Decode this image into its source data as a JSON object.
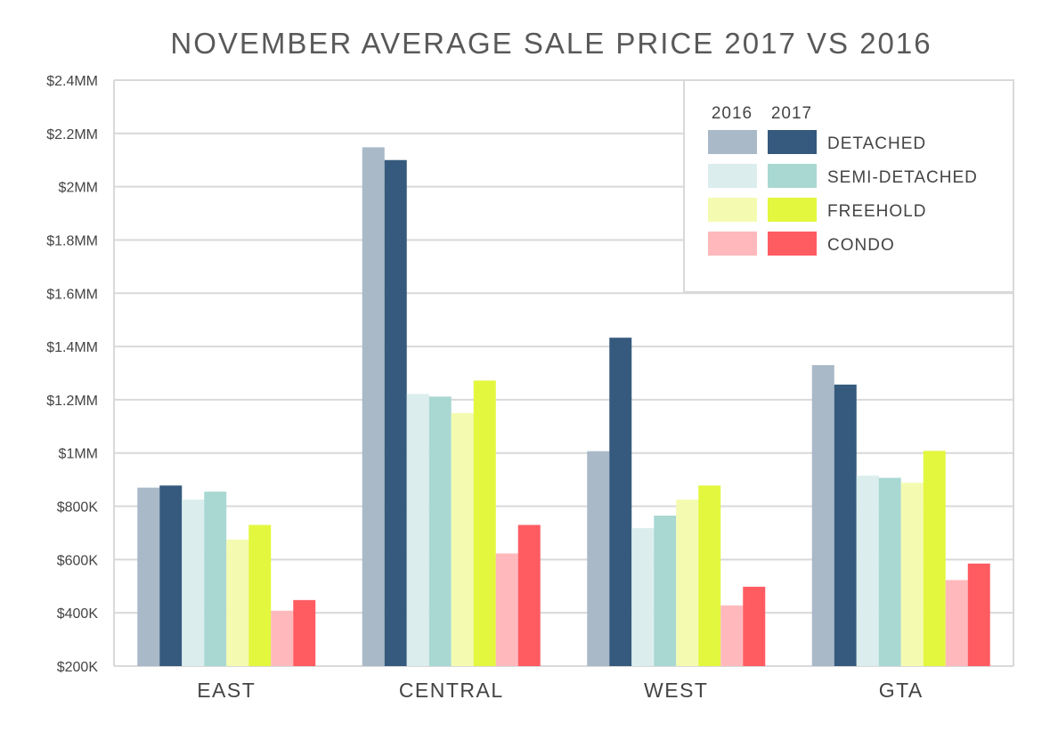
{
  "chart_data": {
    "type": "bar",
    "title": "NOVEMBER AVERAGE SALE PRICE 2017 VS 2016",
    "xlabel": "",
    "ylabel": "",
    "ylim": [
      200000,
      2400000
    ],
    "y_ticks": [
      {
        "value": 200000,
        "label": "$200K"
      },
      {
        "value": 400000,
        "label": "$400K"
      },
      {
        "value": 600000,
        "label": "$600K"
      },
      {
        "value": 800000,
        "label": "$800K"
      },
      {
        "value": 1000000,
        "label": "$1MM"
      },
      {
        "value": 1200000,
        "label": "$1.2MM"
      },
      {
        "value": 1400000,
        "label": "$1.4MM"
      },
      {
        "value": 1600000,
        "label": "$1.6MM"
      },
      {
        "value": 1800000,
        "label": "$1.8MM"
      },
      {
        "value": 2000000,
        "label": "$2MM"
      },
      {
        "value": 2200000,
        "label": "$2.2MM"
      },
      {
        "value": 2400000,
        "label": "$2.4MM"
      }
    ],
    "grid": true,
    "legend_position": "top-right",
    "categories": [
      "EAST",
      "CENTRAL",
      "WEST",
      "GTA"
    ],
    "legend_years": [
      "2016",
      "2017"
    ],
    "legend_rows": [
      {
        "label": "DETACHED",
        "color_2016": "#a9b9c8",
        "color_2017": "#355a7d"
      },
      {
        "label": "SEMI-DETACHED",
        "color_2016": "#dbeeed",
        "color_2017": "#a9d8d3"
      },
      {
        "label": "FREEHOLD",
        "color_2016": "#f4fbb0",
        "color_2017": "#e3f73e"
      },
      {
        "label": "CONDO",
        "color_2016": "#ffb9bc",
        "color_2017": "#ff5c62"
      }
    ],
    "series": [
      {
        "type": "DETACHED",
        "year": "2016",
        "color": "#a9b9c8",
        "values": [
          870000,
          2148000,
          1007000,
          1330000
        ]
      },
      {
        "type": "DETACHED",
        "year": "2017",
        "color": "#355a7d",
        "values": [
          878000,
          2100000,
          1433000,
          1257000
        ]
      },
      {
        "type": "SEMI-DETACHED",
        "year": "2016",
        "color": "#dbeeed",
        "values": [
          825000,
          1222000,
          718000,
          915000
        ]
      },
      {
        "type": "SEMI-DETACHED",
        "year": "2017",
        "color": "#a9d8d3",
        "values": [
          855000,
          1212000,
          765000,
          907000
        ]
      },
      {
        "type": "FREEHOLD",
        "year": "2016",
        "color": "#f4fbb0",
        "values": [
          675000,
          1150000,
          825000,
          888000
        ]
      },
      {
        "type": "FREEHOLD",
        "year": "2017",
        "color": "#e3f73e",
        "values": [
          730000,
          1272000,
          878000,
          1008000
        ]
      },
      {
        "type": "CONDO",
        "year": "2016",
        "color": "#ffb9bc",
        "values": [
          408000,
          623000,
          428000,
          523000
        ]
      },
      {
        "type": "CONDO",
        "year": "2017",
        "color": "#ff5c62",
        "values": [
          448000,
          730000,
          498000,
          585000
        ]
      }
    ]
  }
}
